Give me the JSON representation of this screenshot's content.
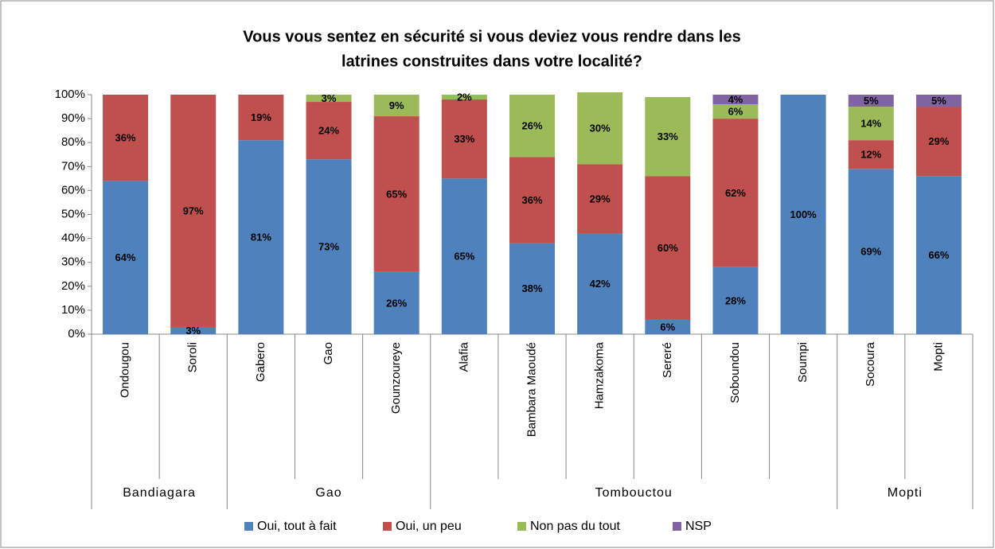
{
  "chart_data": {
    "type": "stacked_bar",
    "title": [
      "Vous vous sentez en sécurité si vous deviez vous rendre dans les",
      "latrines construites dans votre localité?"
    ],
    "categories": [
      "Ondougou",
      "Soroli",
      "Gabero",
      "Gao",
      "Gounzoureye",
      "Alafia",
      "Bambara Maoudé",
      "Hamzakoma",
      "Sereré",
      "Soboundou",
      "Soumpi",
      "Socoura",
      "Mopti"
    ],
    "groups": [
      "Bandiagara",
      "Bandiagara",
      "Gao",
      "Gao",
      "Gao",
      "Tombouctou",
      "Tombouctou",
      "Tombouctou",
      "Tombouctou",
      "Tombouctou",
      "Tombouctou",
      "Mopti",
      "Mopti"
    ],
    "series": [
      {
        "name": "Oui, tout à fait",
        "color": "#4f81bd",
        "values": [
          64,
          3,
          81,
          73,
          26,
          65,
          38,
          42,
          6,
          28,
          100,
          69,
          66
        ],
        "value_labels": [
          "64%",
          "3%",
          "81%",
          "73%",
          "26%",
          "65%",
          "38%",
          "42%",
          "6%",
          "28%",
          "100%",
          "69%",
          "66%"
        ]
      },
      {
        "name": "Oui, un peu",
        "color": "#c0504d",
        "values": [
          36,
          97,
          19,
          24,
          65,
          33,
          36,
          29,
          60,
          62,
          null,
          12,
          29
        ],
        "value_labels": [
          "36%",
          "97%",
          "19%",
          "24%",
          "65%",
          "33%",
          "36%",
          "29%",
          "60%",
          "62%",
          null,
          "12%",
          "29%"
        ]
      },
      {
        "name": "Non pas du tout",
        "color": "#9bbb59",
        "values": [
          null,
          null,
          null,
          3,
          9,
          2,
          26,
          30,
          33,
          6,
          null,
          14,
          null
        ],
        "value_labels": [
          null,
          null,
          null,
          "3%",
          "9%",
          "2%",
          "26%",
          "30%",
          "33%",
          "6%",
          null,
          "14%",
          null
        ]
      },
      {
        "name": "NSP",
        "color": "#8064a2",
        "values": [
          null,
          null,
          null,
          null,
          null,
          null,
          null,
          null,
          null,
          4,
          null,
          5,
          5
        ],
        "value_labels": [
          null,
          null,
          null,
          null,
          null,
          null,
          null,
          null,
          null,
          "4%",
          null,
          "5%",
          "5%"
        ]
      }
    ],
    "ylim": [
      0,
      100
    ],
    "yticks": [
      {
        "value": 0,
        "label": "0%"
      },
      {
        "value": 10,
        "label": "10%"
      },
      {
        "value": 20,
        "label": "20%"
      },
      {
        "value": 30,
        "label": "30%"
      },
      {
        "value": 40,
        "label": "40%"
      },
      {
        "value": 50,
        "label": "50%"
      },
      {
        "value": 60,
        "label": "60%"
      },
      {
        "value": 70,
        "label": "70%"
      },
      {
        "value": 80,
        "label": "80%"
      },
      {
        "value": 90,
        "label": "90%"
      },
      {
        "value": 100,
        "label": "100%"
      }
    ],
    "legend": "bottom"
  }
}
